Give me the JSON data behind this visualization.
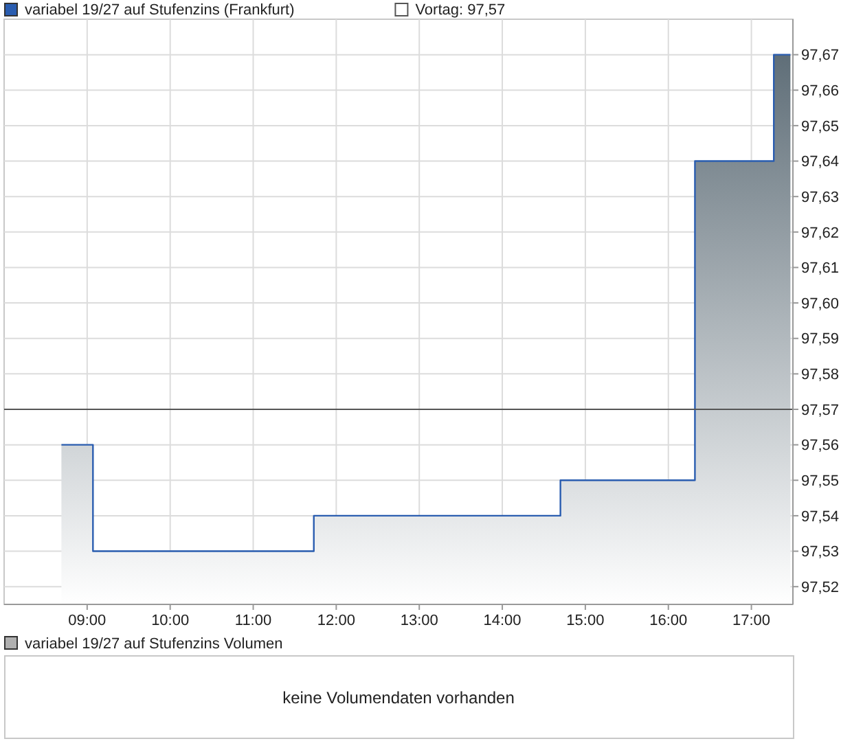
{
  "chart_data": [
    {
      "type": "area",
      "xlim": [
        8,
        17.5
      ],
      "ylim": [
        97.515,
        97.68
      ],
      "xticks": [
        {
          "value": 9,
          "label": "09:00"
        },
        {
          "value": 10,
          "label": "10:00"
        },
        {
          "value": 11,
          "label": "11:00"
        },
        {
          "value": 12,
          "label": "12:00"
        },
        {
          "value": 13,
          "label": "13:00"
        },
        {
          "value": 14,
          "label": "14:00"
        },
        {
          "value": 15,
          "label": "15:00"
        },
        {
          "value": 16,
          "label": "16:00"
        },
        {
          "value": 17,
          "label": "17:00"
        }
      ],
      "yticks": [
        {
          "value": 97.52,
          "label": "97,52"
        },
        {
          "value": 97.53,
          "label": "97,53"
        },
        {
          "value": 97.54,
          "label": "97,54"
        },
        {
          "value": 97.55,
          "label": "97,55"
        },
        {
          "value": 97.56,
          "label": "97,56"
        },
        {
          "value": 97.57,
          "label": "97,57"
        },
        {
          "value": 97.58,
          "label": "97,58"
        },
        {
          "value": 97.59,
          "label": "97,59"
        },
        {
          "value": 97.6,
          "label": "97,60"
        },
        {
          "value": 97.61,
          "label": "97,61"
        },
        {
          "value": 97.62,
          "label": "97,62"
        },
        {
          "value": 97.63,
          "label": "97,63"
        },
        {
          "value": 97.64,
          "label": "97,64"
        },
        {
          "value": 97.65,
          "label": "97,65"
        },
        {
          "value": 97.66,
          "label": "97,66"
        },
        {
          "value": 97.67,
          "label": "97,67"
        }
      ],
      "grid": true,
      "legend": "top left",
      "series": [
        {
          "name": "variabel 19/27 auf Stufenzins (Frankfurt)",
          "color": "#2a5db0",
          "x": [
            8.69,
            9.07,
            9.07,
            11.73,
            11.73,
            14.7,
            14.7,
            16.32,
            16.32,
            17.27,
            17.27,
            17.47
          ],
          "values": [
            97.56,
            97.56,
            97.53,
            97.53,
            97.54,
            97.54,
            97.55,
            97.55,
            97.64,
            97.64,
            97.67,
            97.67
          ]
        }
      ],
      "ref_lines": [
        {
          "axis": "y",
          "value": 97.57,
          "label": "Vortag: 97,57",
          "color": "#555555"
        }
      ]
    },
    {
      "type": "other",
      "title": "variabel 19/27 auf Stufenzins Volumen",
      "annotations": [
        "keine Volumendaten vorhanden"
      ]
    }
  ]
}
